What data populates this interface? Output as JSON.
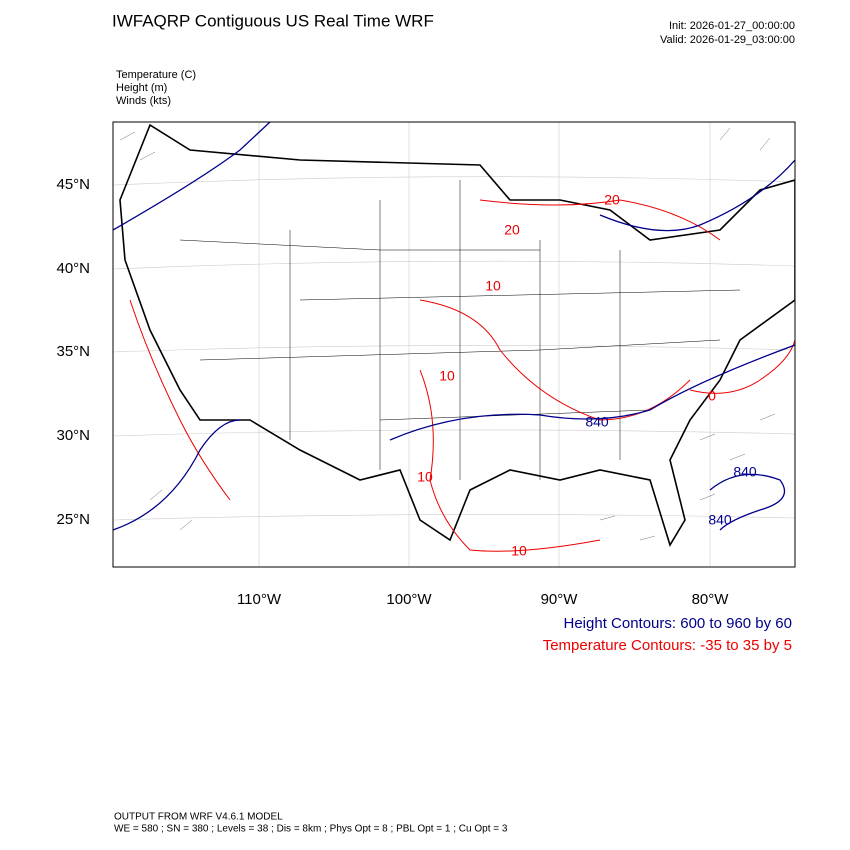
{
  "header": {
    "title": "IWFAQRP Contiguous US Real Time WRF",
    "init": "Init: 2026-01-27_00:00:00",
    "valid": "Valid: 2026-01-29_03:00:00"
  },
  "fields": [
    "Temperature   (C)",
    "Height   (m)",
    "Winds   (kts)"
  ],
  "map": {
    "lat_labels": [
      "45°N",
      "40°N",
      "35°N",
      "30°N",
      "25°N"
    ],
    "lon_labels": [
      "110°W",
      "100°W",
      "90°W",
      "80°W"
    ],
    "contour_labels": [
      "20",
      "20",
      "10",
      "10",
      "0",
      "840",
      "840",
      "840",
      "10",
      "10"
    ]
  },
  "legend": {
    "height": "Height Contours: 600 to 960 by 60",
    "temperature": "Temperature Contours: -35 to 35 by 5"
  },
  "footer": [
    "OUTPUT FROM WRF V4.6.1 MODEL",
    "WE = 580 ; SN = 380 ; Levels = 38 ; Dis = 8km ; Phys Opt = 8 ; PBL Opt = 1 ; Cu Opt = 3"
  ]
}
